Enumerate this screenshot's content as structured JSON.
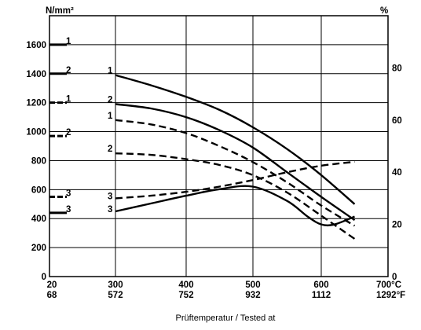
{
  "chart_data": {
    "type": "line",
    "xlabel": "Prüftemperatur / Tested at",
    "y_left_unit": "N/mm²",
    "y_right_unit": "%",
    "x_unit_c": "°C",
    "x_unit_f": "°F",
    "xlim": [
      20,
      700
    ],
    "ylim": [
      0,
      1800
    ],
    "y_right_lim": [
      0,
      100
    ],
    "grid": true,
    "x_ticks": [
      {
        "c": 20,
        "c_label": "20",
        "f_label": "68"
      },
      {
        "c": 300,
        "c_label": "300",
        "f_label": "572"
      },
      {
        "c": 400,
        "c_label": "400",
        "f_label": "752"
      },
      {
        "c": 500,
        "c_label": "500",
        "f_label": "932"
      },
      {
        "c": 600,
        "c_label": "600",
        "f_label": "1112"
      },
      {
        "c": 700,
        "c_label": "700°C",
        "f_label": "1292°F"
      }
    ],
    "y_left_ticks": [
      {
        "v": 0,
        "label": "0"
      },
      {
        "v": 200,
        "label": "200"
      },
      {
        "v": 400,
        "label": "400"
      },
      {
        "v": 600,
        "label": "600"
      },
      {
        "v": 800,
        "label": "800"
      },
      {
        "v": 1000,
        "label": "1000"
      },
      {
        "v": 1200,
        "label": "1200"
      },
      {
        "v": 1400,
        "label": "1400"
      },
      {
        "v": 1600,
        "label": "1600"
      }
    ],
    "y_right_ticks": [
      {
        "v": 0,
        "label": "0"
      },
      {
        "v": 20,
        "label": "20"
      },
      {
        "v": 40,
        "label": "40"
      },
      {
        "v": 60,
        "label": "60"
      },
      {
        "v": 80,
        "label": "80"
      }
    ],
    "series": [
      {
        "label": "1",
        "style": "solid",
        "axis": "left",
        "x": [
          300,
          350,
          400,
          450,
          500,
          550,
          600,
          650
        ],
        "y": [
          1390,
          1320,
          1240,
          1150,
          1030,
          880,
          700,
          500
        ]
      },
      {
        "label": "2",
        "style": "solid",
        "axis": "left",
        "x": [
          300,
          350,
          400,
          450,
          500,
          550,
          600,
          650
        ],
        "y": [
          1190,
          1160,
          1100,
          1010,
          890,
          720,
          550,
          390
        ]
      },
      {
        "label": "1",
        "style": "dashed",
        "axis": "left",
        "x": [
          300,
          350,
          400,
          450,
          500,
          550,
          600,
          650
        ],
        "y": [
          1080,
          1050,
          990,
          900,
          790,
          650,
          490,
          350
        ]
      },
      {
        "label": "2",
        "style": "dashed",
        "axis": "left",
        "x": [
          300,
          350,
          400,
          450,
          500,
          550,
          600,
          650
        ],
        "y": [
          850,
          840,
          810,
          770,
          700,
          580,
          420,
          260
        ]
      },
      {
        "label": "3",
        "style": "dashed",
        "axis": "right",
        "x": [
          300,
          350,
          400,
          450,
          500,
          550,
          600,
          650
        ],
        "y": [
          30,
          31,
          32.5,
          34.5,
          37,
          40,
          42.5,
          44
        ]
      },
      {
        "label": "3",
        "style": "solid",
        "axis": "right",
        "x": [
          300,
          350,
          400,
          450,
          500,
          550,
          580,
          600,
          620,
          650
        ],
        "y": [
          25,
          28,
          31,
          33.5,
          34.5,
          29,
          23,
          20,
          20,
          23
        ]
      }
    ],
    "room_temp_markers": [
      {
        "label": "1",
        "style": "solid",
        "y": 1600
      },
      {
        "label": "2",
        "style": "solid",
        "y": 1400
      },
      {
        "label": "1",
        "style": "dashed",
        "y": 1200
      },
      {
        "label": "2",
        "style": "dashed",
        "y": 970
      },
      {
        "label": "3",
        "style": "dashed",
        "y": 550
      },
      {
        "label": "3",
        "style": "solid",
        "y": 440
      }
    ]
  }
}
